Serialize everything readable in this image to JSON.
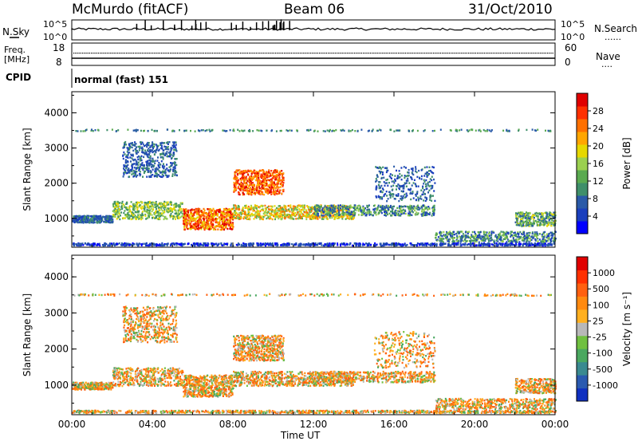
{
  "header": {
    "station": "McMurdo (fitACF)",
    "beam": "Beam 06",
    "date": "31/Oct/2010"
  },
  "nsky_panel": {
    "left_label": "N.Sky",
    "right_label": "N.Search",
    "left_ticks": [
      "10^5",
      "10^0"
    ],
    "right_ticks": [
      "10^5",
      "10^0"
    ]
  },
  "freq_panel": {
    "left_label": "Freq.",
    "left_unit": "[MHz]",
    "left_ticks": [
      "18",
      "8"
    ],
    "right_label": "Nave",
    "right_ticks": [
      "60",
      "0"
    ]
  },
  "cpid_panel": {
    "label": "CPID",
    "mode": "normal (fast) 151"
  },
  "chart_data": [
    {
      "type": "heatmap",
      "name": "power",
      "ylabel": "Slant Range [km]",
      "ylim": [
        180,
        4600
      ],
      "y_ticks": [
        "1000",
        "2000",
        "3000",
        "4000"
      ],
      "x_ticks": [
        "00:00",
        "04:00",
        "08:00",
        "12:00",
        "16:00",
        "20:00",
        "00:00"
      ],
      "colorbar": {
        "label": "Power [dB]",
        "ticks": [
          "28",
          "24",
          "20",
          "16",
          "12",
          "8",
          "4"
        ],
        "colors": [
          "#0000ff",
          "#1a3fbd",
          "#2a5aa8",
          "#3f8f6a",
          "#5aaa50",
          "#9bd050",
          "#e6d800",
          "#ffa600",
          "#ff7000",
          "#ff3000",
          "#e00000"
        ]
      }
    },
    {
      "type": "heatmap",
      "name": "velocity",
      "ylabel": "Slant Range [km]",
      "ylim": [
        180,
        4600
      ],
      "y_ticks": [
        "1000",
        "2000",
        "3000",
        "4000"
      ],
      "x_ticks": [
        "00:00",
        "04:00",
        "08:00",
        "12:00",
        "16:00",
        "20:00",
        "00:00"
      ],
      "xlabel": "Time UT",
      "colorbar": {
        "label": "Velocity [m s⁻¹]",
        "ticks": [
          "1000",
          "500",
          "100",
          "25",
          "-25",
          "-100",
          "-500",
          "-1000"
        ],
        "colors": [
          "#1030c0",
          "#2a5ab0",
          "#3a8a90",
          "#4aa860",
          "#70c040",
          "#b8b8b8",
          "#ffb020",
          "#ff8a10",
          "#ff6010",
          "#ff3000",
          "#e00000"
        ]
      }
    }
  ]
}
